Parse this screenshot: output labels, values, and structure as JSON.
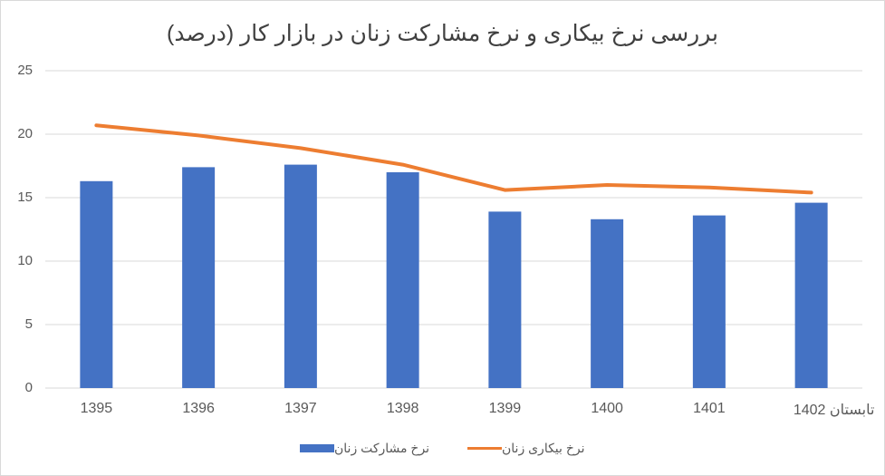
{
  "chart_data": {
    "type": "bar",
    "title": "بررسی نرخ بیکاری و نرخ مشارکت زنان در بازار کار (درصد)",
    "xlabel": "",
    "ylabel": "",
    "ylim": [
      0,
      25
    ],
    "yticks": [
      "0",
      "5",
      "10",
      "15",
      "20",
      "25"
    ],
    "grid": true,
    "legend_position": "bottom",
    "categories": [
      "1395",
      "1396",
      "1397",
      "1398",
      "1399",
      "1400",
      "1401",
      "تابستان 1402"
    ],
    "series": [
      {
        "name": "نرخ مشارکت زنان",
        "type": "bar",
        "color": "#4472c4",
        "values": [
          16.3,
          17.4,
          17.6,
          17.0,
          13.9,
          13.3,
          13.6,
          14.6
        ]
      },
      {
        "name": "نرخ بیکاری زنان",
        "type": "line",
        "color": "#ed7d31",
        "values": [
          20.7,
          19.9,
          18.9,
          17.6,
          15.6,
          16.0,
          15.8,
          15.4
        ]
      }
    ]
  }
}
